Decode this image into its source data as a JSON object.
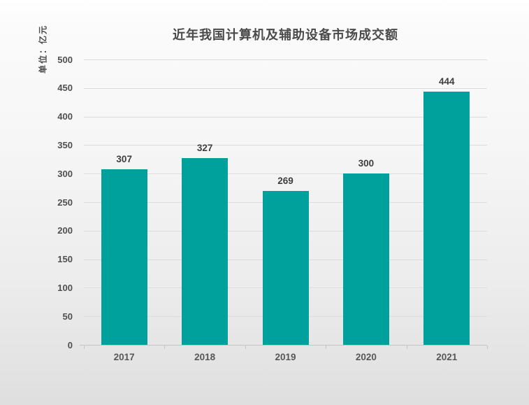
{
  "chart_data": {
    "type": "bar",
    "title": "近年我国计算机及辅助设备市场成交额",
    "unit_label": "单位：亿元",
    "categories": [
      "2017",
      "2018",
      "2019",
      "2020",
      "2021"
    ],
    "values": [
      307,
      327,
      269,
      300,
      444
    ],
    "ylim": [
      0,
      500
    ],
    "y_tick_step": 50,
    "y_tick_labels": [
      "0",
      "50",
      "100",
      "150",
      "200",
      "250",
      "300",
      "350",
      "400",
      "450",
      "500"
    ],
    "grid": true,
    "legend": "none",
    "bar_color": "#00a19c",
    "title_color": "#4a4a4a",
    "label_color": "#3e3e3e",
    "tick_color": "#4f4f4f"
  }
}
